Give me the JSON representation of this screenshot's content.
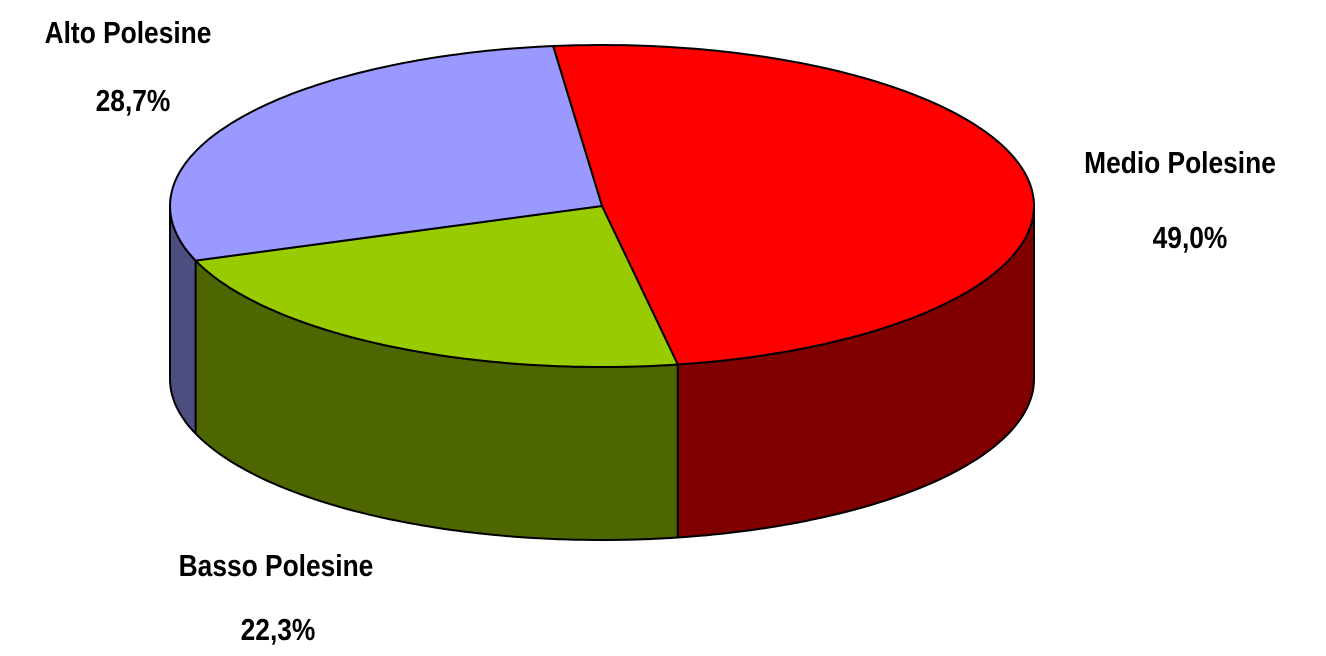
{
  "chart_data": {
    "type": "pie3d",
    "categories": [
      "Medio Polesine",
      "Basso Polesine",
      "Alto Polesine"
    ],
    "values": [
      49.0,
      22.3,
      28.7
    ],
    "value_labels": [
      "49,0%",
      "22,3%",
      "28,7%"
    ],
    "colors": [
      "#ff0000",
      "#99cc00",
      "#9999ff"
    ]
  }
}
